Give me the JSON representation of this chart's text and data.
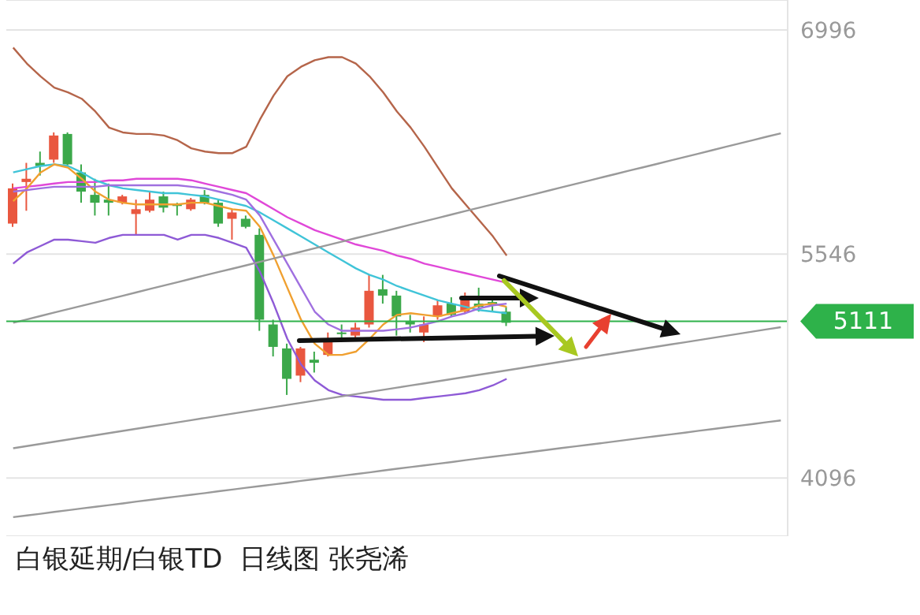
{
  "chart_data": {
    "type": "candlestick",
    "title": "白银延期/白银TD  日线图 张尧浠",
    "categories": [
      null,
      null,
      null,
      null,
      null,
      null,
      null,
      null,
      null,
      null,
      null,
      null,
      null,
      null,
      null,
      null,
      null,
      null,
      null,
      null,
      null,
      null,
      null,
      null,
      null,
      null,
      null,
      null,
      null,
      null,
      null,
      null,
      null,
      null,
      null,
      null,
      null,
      null,
      null,
      null,
      null,
      null,
      null,
      null,
      null,
      null,
      null,
      null,
      null,
      null,
      null,
      null,
      null,
      null,
      null,
      null,
      null
    ],
    "ohlc": [
      [
        5743,
        6002,
        5722,
        5971
      ],
      [
        6012,
        6136,
        5826,
        6033
      ],
      [
        6136,
        6209,
        6054,
        6115
      ],
      [
        6157,
        6333,
        6136,
        6313
      ],
      [
        6323,
        6333,
        6105,
        6126
      ],
      [
        6074,
        6126,
        5878,
        5950
      ],
      [
        5929,
        6033,
        5795,
        5878
      ],
      [
        5898,
        6002,
        5795,
        5878
      ],
      [
        5878,
        5929,
        5867,
        5919
      ],
      [
        5805,
        5898,
        5670,
        5836
      ],
      [
        5826,
        5950,
        5815,
        5898
      ],
      [
        5919,
        5950,
        5815,
        5846
      ],
      [
        5867,
        5878,
        5795,
        5857
      ],
      [
        5836,
        5909,
        5826,
        5898
      ],
      [
        5929,
        5960,
        5867,
        5878
      ],
      [
        5878,
        5898,
        5722,
        5743
      ],
      [
        5774,
        5836,
        5639,
        5815
      ],
      [
        5774,
        5795,
        5712,
        5722
      ],
      [
        5670,
        5712,
        5049,
        5121
      ],
      [
        5090,
        5121,
        4883,
        4945
      ],
      [
        4935,
        4966,
        4634,
        4738
      ],
      [
        4759,
        4945,
        4717,
        4935
      ],
      [
        4862,
        4914,
        4779,
        4842
      ],
      [
        4893,
        5038,
        4883,
        4987
      ],
      [
        5038,
        5090,
        4997,
        5028
      ],
      [
        5018,
        5101,
        4997,
        5070
      ],
      [
        5090,
        5411,
        5070,
        5308
      ],
      [
        5318,
        5411,
        5225,
        5277
      ],
      [
        5277,
        5308,
        5018,
        5142
      ],
      [
        5111,
        5152,
        5038,
        5090
      ],
      [
        5038,
        5142,
        4976,
        5090
      ],
      [
        5142,
        5246,
        5121,
        5214
      ],
      [
        5225,
        5266,
        5142,
        5152
      ],
      [
        5173,
        5297,
        5163,
        5246
      ],
      [
        5225,
        5328,
        5173,
        5204
      ],
      [
        5235,
        5266,
        5173,
        5214
      ],
      [
        5173,
        5204,
        5080,
        5101
      ],
      null,
      null,
      null,
      null,
      null,
      null,
      null,
      null,
      null,
      null,
      null,
      null,
      null,
      null,
      null,
      null,
      null,
      null,
      null,
      null
    ],
    "series": [
      {
        "type": "line",
        "color": "#b5654a",
        "values": [
          6882,
          6779,
          6696,
          6623,
          6592,
          6551,
          6468,
          6364,
          6333,
          6323,
          6323,
          6313,
          6282,
          6230,
          6209,
          6199,
          6199,
          6240,
          6416,
          6572,
          6696,
          6758,
          6800,
          6820,
          6820,
          6779,
          6696,
          6592,
          6468,
          6364,
          6240,
          6105,
          5971,
          5867,
          5764,
          5660,
          5536,
          null,
          null,
          null,
          null,
          null,
          null,
          null,
          null,
          null,
          null,
          null,
          null,
          null,
          null,
          null,
          null,
          null,
          null,
          null,
          null
        ]
      },
      {
        "type": "line",
        "color": "#e048d8",
        "values": [
          5971,
          5981,
          5991,
          6002,
          6012,
          6012,
          6012,
          6023,
          6023,
          6033,
          6033,
          6033,
          6033,
          6023,
          6002,
          5981,
          5960,
          5940,
          5888,
          5836,
          5784,
          5743,
          5701,
          5670,
          5639,
          5608,
          5587,
          5567,
          5536,
          5515,
          5484,
          5463,
          5442,
          5422,
          5401,
          5380,
          5360,
          null,
          null,
          null,
          null,
          null,
          null,
          null,
          null,
          null,
          null,
          null,
          null,
          null,
          null,
          null,
          null,
          null,
          null,
          null,
          null
        ]
      },
      {
        "type": "line",
        "color": "#8e5ad6",
        "values": [
          5484,
          5556,
          5598,
          5639,
          5639,
          5629,
          5619,
          5650,
          5670,
          5670,
          5670,
          5670,
          5639,
          5670,
          5670,
          5650,
          5619,
          5587,
          5432,
          5225,
          4997,
          4831,
          4728,
          4665,
          4634,
          4624,
          4614,
          4603,
          4603,
          4603,
          4614,
          4624,
          4634,
          4645,
          4665,
          4696,
          4738,
          null,
          null,
          null,
          null,
          null,
          null,
          null,
          null,
          null,
          null,
          null,
          null,
          null,
          null,
          null,
          null,
          null,
          null,
          null,
          null
        ]
      },
      {
        "type": "line",
        "color": "#40c4d8",
        "values": [
          6074,
          6095,
          6116,
          6126,
          6116,
          6074,
          6023,
          5991,
          5971,
          5960,
          5950,
          5940,
          5940,
          5929,
          5919,
          5898,
          5878,
          5857,
          5815,
          5764,
          5712,
          5660,
          5608,
          5556,
          5505,
          5453,
          5411,
          5380,
          5339,
          5308,
          5277,
          5246,
          5225,
          5204,
          5183,
          5173,
          5163,
          null,
          null,
          null,
          null,
          null,
          null,
          null,
          null,
          null,
          null,
          null,
          null,
          null,
          null,
          null,
          null,
          null,
          null,
          null,
          null
        ]
      },
      {
        "type": "line",
        "color": "#f0a030",
        "values": [
          5888,
          5971,
          6074,
          6126,
          6105,
          6033,
          5950,
          5898,
          5878,
          5867,
          5867,
          5867,
          5867,
          5878,
          5878,
          5857,
          5836,
          5826,
          5722,
          5536,
          5328,
          5121,
          4966,
          4893,
          4893,
          4914,
          4997,
          5090,
          5152,
          5163,
          5152,
          5142,
          5163,
          5183,
          5214,
          5225,
          5204,
          null,
          null,
          null,
          null,
          null,
          null,
          null,
          null,
          null,
          null,
          null,
          null,
          null,
          null,
          null,
          null,
          null,
          null,
          null,
          null
        ]
      },
      {
        "type": "line",
        "color": "#a070e0",
        "values": [
          5950,
          5960,
          5971,
          5981,
          5981,
          5981,
          5981,
          5991,
          5991,
          5991,
          5991,
          5991,
          5991,
          5981,
          5971,
          5950,
          5929,
          5898,
          5795,
          5639,
          5484,
          5328,
          5173,
          5090,
          5049,
          5049,
          5049,
          5049,
          5059,
          5070,
          5090,
          5111,
          5142,
          5163,
          5194,
          5214,
          5225,
          null,
          null,
          null,
          null,
          null,
          null,
          null,
          null,
          null,
          null,
          null,
          null,
          null,
          null,
          null,
          null,
          null,
          null,
          null,
          null
        ]
      },
      {
        "type": "line",
        "color": "#9a9a9a",
        "values": [
          5101,
          5123,
          5145,
          5167,
          5189,
          5211,
          5232,
          5254,
          5276,
          5298,
          5320,
          5342,
          5364,
          5386,
          5408,
          5430,
          5451,
          5473,
          5495,
          5517,
          5539,
          5561,
          5583,
          5605,
          5627,
          5649,
          5670,
          5692,
          5714,
          5736,
          5758,
          5780,
          5802,
          5824,
          5846,
          5868,
          5889,
          5911,
          5933,
          5955,
          5977,
          5999,
          6021,
          6043,
          6065,
          6087,
          6108,
          6130,
          6152,
          6174,
          6196,
          6218,
          6240,
          6262,
          6284,
          6306,
          6327
        ]
      },
      {
        "type": "line",
        "color": "#9a9a9a",
        "values": [
          4289,
          4303,
          4317,
          4331,
          4345,
          4359,
          4373,
          4387,
          4401,
          4415,
          4429,
          4443,
          4457,
          4471,
          4485,
          4499,
          4513,
          4527,
          4541,
          4555,
          4569,
          4583,
          4597,
          4611,
          4625,
          4639,
          4653,
          4667,
          4681,
          4695,
          4709,
          4723,
          4737,
          4751,
          4765,
          4779,
          4793,
          4807,
          4821,
          4835,
          4849,
          4863,
          4877,
          4891,
          4905,
          4919,
          4933,
          4947,
          4961,
          4975,
          4989,
          5003,
          5017,
          5031,
          5045,
          5059,
          5072
        ]
      },
      {
        "type": "line",
        "color": "#9a9a9a",
        "values": [
          3843,
          3854,
          3865,
          3877,
          3888,
          3899,
          3910,
          3921,
          3932,
          3944,
          3955,
          3966,
          3977,
          3988,
          3999,
          4011,
          4022,
          4033,
          4044,
          4055,
          4066,
          4078,
          4089,
          4100,
          4111,
          4122,
          4133,
          4145,
          4156,
          4167,
          4178,
          4189,
          4200,
          4212,
          4223,
          4234,
          4245,
          4256,
          4267,
          4279,
          4290,
          4301,
          4312,
          4323,
          4334,
          4346,
          4357,
          4368,
          4379,
          4390,
          4402,
          4413,
          4424,
          4435,
          4446,
          4458,
          4469
        ]
      }
    ],
    "ylim": [
      3720,
      7190
    ],
    "yticks": [
      4096,
      5546,
      6996
    ],
    "grid": "y",
    "tick_labels": "y",
    "marker": "none",
    "line_style": "solid",
    "ref_lines": [
      {
        "axis": "y",
        "value": 5111,
        "label": "5111",
        "color": "#2eb24a"
      }
    ]
  }
}
